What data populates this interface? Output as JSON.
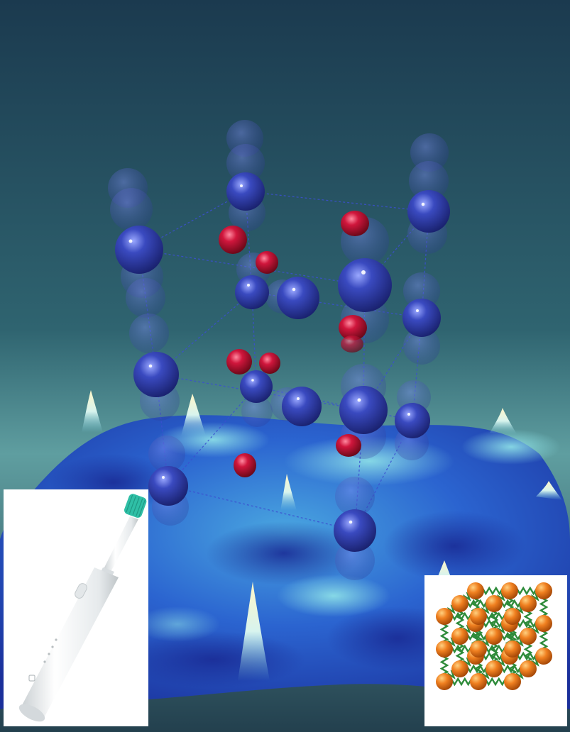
{
  "scene": {
    "description_free": true,
    "colors": {
      "background_top": "#1b3a4f",
      "background_bottom": "#5f9ea0",
      "surface_high": "#8fe3e8",
      "surface_low": "#1d35a8",
      "atom_large": "#2a3aa8",
      "atom_small": "#c2143a",
      "bond_dashed": "#3b4fd0"
    }
  },
  "insets": {
    "left": {
      "icon": "electric-toothbrush-icon",
      "colors": {
        "body": "#f4f6f7",
        "bristles": "#2fbfa6"
      }
    },
    "right": {
      "icon": "ball-and-spring-lattice-icon",
      "colors": {
        "ball": "#f08020",
        "spring": "#2e8b3a"
      }
    }
  }
}
